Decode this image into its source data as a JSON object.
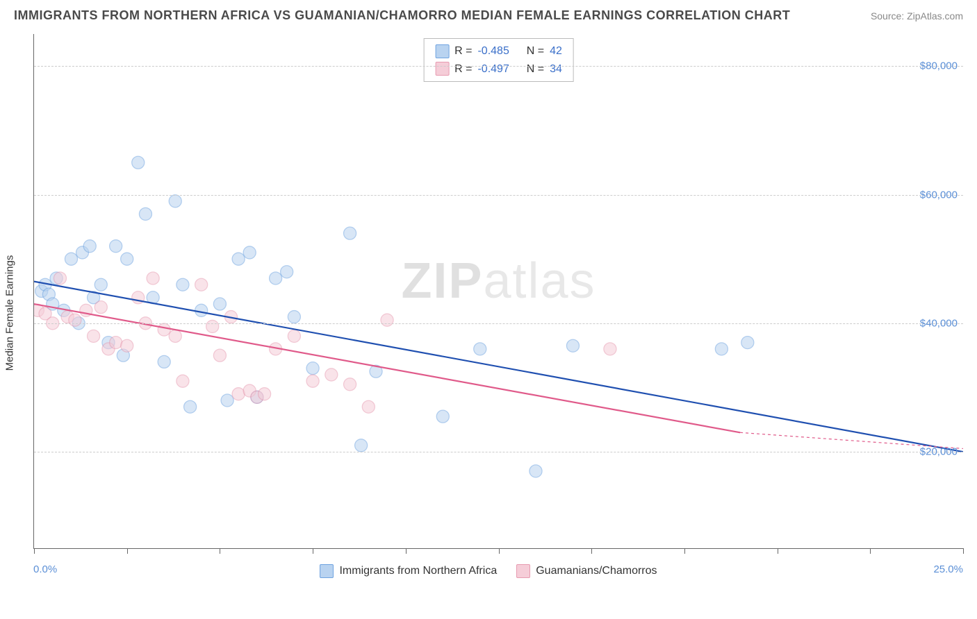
{
  "title": "IMMIGRANTS FROM NORTHERN AFRICA VS GUAMANIAN/CHAMORRO MEDIAN FEMALE EARNINGS CORRELATION CHART",
  "source": "Source: ZipAtlas.com",
  "watermark_a": "ZIP",
  "watermark_b": "atlas",
  "ylabel": "Median Female Earnings",
  "chart": {
    "type": "scatter-correlation",
    "background_color": "#ffffff",
    "grid_color": "#cccccc",
    "axis_color": "#666666",
    "text_color": "#333333",
    "value_color": "#3a6fc9",
    "tick_label_color": "#5b8fd6",
    "xlim": [
      0,
      25
    ],
    "xtick_step": 2.5,
    "x_label_min": "0.0%",
    "x_label_max": "25.0%",
    "ylim": [
      5000,
      85000
    ],
    "yticks": [
      20000,
      40000,
      60000,
      80000
    ],
    "ytick_labels": [
      "$20,000",
      "$40,000",
      "$60,000",
      "$80,000"
    ],
    "marker_radius": 9,
    "marker_opacity": 0.55,
    "line_width": 2.2,
    "series": [
      {
        "name": "Immigrants from Northern Africa",
        "fill": "#b9d3f0",
        "stroke": "#6fa3e0",
        "line_color": "#1f4fb0",
        "r_value": "-0.485",
        "n_value": "42",
        "regression": {
          "x1": 0,
          "y1": 46500,
          "x2": 25,
          "y2": 20000
        },
        "dash_tail": null,
        "points": [
          [
            0.2,
            45000
          ],
          [
            0.3,
            46000
          ],
          [
            0.4,
            44500
          ],
          [
            0.5,
            43000
          ],
          [
            0.6,
            47000
          ],
          [
            0.8,
            42000
          ],
          [
            1.0,
            50000
          ],
          [
            1.2,
            40000
          ],
          [
            1.3,
            51000
          ],
          [
            1.5,
            52000
          ],
          [
            1.6,
            44000
          ],
          [
            1.8,
            46000
          ],
          [
            2.0,
            37000
          ],
          [
            2.2,
            52000
          ],
          [
            2.4,
            35000
          ],
          [
            2.5,
            50000
          ],
          [
            2.8,
            65000
          ],
          [
            3.0,
            57000
          ],
          [
            3.2,
            44000
          ],
          [
            3.5,
            34000
          ],
          [
            3.8,
            59000
          ],
          [
            4.2,
            27000
          ],
          [
            4.5,
            42000
          ],
          [
            5.0,
            43000
          ],
          [
            5.2,
            28000
          ],
          [
            5.5,
            50000
          ],
          [
            5.8,
            51000
          ],
          [
            6.0,
            28500
          ],
          [
            6.5,
            47000
          ],
          [
            6.8,
            48000
          ],
          [
            7.0,
            41000
          ],
          [
            7.5,
            33000
          ],
          [
            8.5,
            54000
          ],
          [
            8.8,
            21000
          ],
          [
            9.2,
            32500
          ],
          [
            11.0,
            25500
          ],
          [
            12.0,
            36000
          ],
          [
            13.5,
            17000
          ],
          [
            18.5,
            36000
          ],
          [
            19.2,
            37000
          ],
          [
            14.5,
            36500
          ],
          [
            4.0,
            46000
          ]
        ]
      },
      {
        "name": "Guamanians/Chamorros",
        "fill": "#f5cdd8",
        "stroke": "#e79ab0",
        "line_color": "#e05a8a",
        "r_value": "-0.497",
        "n_value": "34",
        "regression": {
          "x1": 0,
          "y1": 43000,
          "x2": 19,
          "y2": 23000
        },
        "dash_tail": {
          "x1": 19,
          "y1": 23000,
          "x2": 25,
          "y2": 20500
        },
        "points": [
          [
            0.1,
            42000
          ],
          [
            0.3,
            41500
          ],
          [
            0.5,
            40000
          ],
          [
            0.7,
            47000
          ],
          [
            0.9,
            41000
          ],
          [
            1.1,
            40500
          ],
          [
            1.4,
            42000
          ],
          [
            1.6,
            38000
          ],
          [
            1.8,
            42500
          ],
          [
            2.0,
            36000
          ],
          [
            2.2,
            37000
          ],
          [
            2.5,
            36500
          ],
          [
            2.8,
            44000
          ],
          [
            3.0,
            40000
          ],
          [
            3.2,
            47000
          ],
          [
            3.5,
            39000
          ],
          [
            3.8,
            38000
          ],
          [
            4.0,
            31000
          ],
          [
            4.5,
            46000
          ],
          [
            4.8,
            39500
          ],
          [
            5.0,
            35000
          ],
          [
            5.5,
            29000
          ],
          [
            5.8,
            29500
          ],
          [
            6.0,
            28500
          ],
          [
            6.2,
            29000
          ],
          [
            6.5,
            36000
          ],
          [
            7.0,
            38000
          ],
          [
            7.5,
            31000
          ],
          [
            8.0,
            32000
          ],
          [
            8.5,
            30500
          ],
          [
            9.0,
            27000
          ],
          [
            9.5,
            40500
          ],
          [
            15.5,
            36000
          ],
          [
            5.3,
            41000
          ]
        ]
      }
    ]
  },
  "legend_bottom": [
    {
      "label": "Immigrants from Northern Africa",
      "fill": "#b9d3f0",
      "stroke": "#6fa3e0"
    },
    {
      "label": "Guamanians/Chamorros",
      "fill": "#f5cdd8",
      "stroke": "#e79ab0"
    }
  ]
}
